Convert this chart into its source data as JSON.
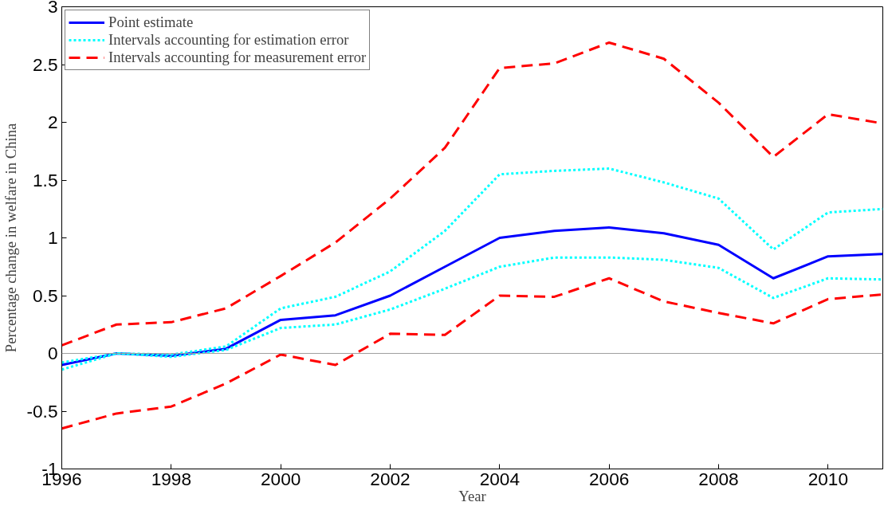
{
  "chart_data": {
    "type": "line",
    "xlabel": "Year",
    "ylabel": "Percentage change in welfare in China",
    "x": [
      1996,
      1997,
      1998,
      1999,
      2000,
      2001,
      2002,
      2003,
      2004,
      2005,
      2006,
      2007,
      2008,
      2009,
      2010,
      2011
    ],
    "series": [
      {
        "name": "Point estimate",
        "color": "#0000ff",
        "line_style": "solid",
        "values": [
          -0.1,
          0,
          -0.02,
          0.04,
          0.29,
          0.33,
          0.5,
          0.75,
          1.0,
          1.06,
          1.09,
          1.04,
          0.94,
          0.65,
          0.84,
          0.86
        ]
      },
      {
        "name": "Intervals accounting for estimation error",
        "color": "#00ffff",
        "line_style": "dotted",
        "values": [
          -0.08,
          0.0,
          -0.01,
          0.06,
          0.39,
          0.49,
          0.71,
          1.06,
          1.55,
          1.58,
          1.6,
          1.48,
          1.34,
          0.9,
          1.22,
          1.25
        ]
      },
      {
        "name": "Intervals accounting for measurement error",
        "color": "#ff0000",
        "line_style": "dashed",
        "values": [
          0.07,
          0.25,
          0.27,
          0.39,
          0.67,
          0.96,
          1.34,
          1.78,
          2.47,
          2.51,
          2.69,
          2.55,
          2.17,
          1.7,
          2.07,
          1.99
        ]
      },
      {
        "color": "#00ffff",
        "line_style": "dotted",
        "values": [
          -0.14,
          0,
          -0.03,
          0.03,
          0.22,
          0.25,
          0.38,
          0.56,
          0.75,
          0.83,
          0.83,
          0.81,
          0.74,
          0.48,
          0.65,
          0.64
        ]
      },
      {
        "color": "#ff0000",
        "line_style": "dashed",
        "values": [
          -0.65,
          -0.52,
          -0.46,
          -0.26,
          -0.01,
          -0.1,
          0.17,
          0.16,
          0.5,
          0.49,
          0.65,
          0.45,
          0.35,
          0.26,
          0.47,
          0.51
        ]
      }
    ],
    "xlim": [
      1996,
      2011
    ],
    "xticks": [
      1996,
      1998,
      2000,
      2002,
      2004,
      2006,
      2008,
      2010
    ],
    "ylim": [
      -1,
      3
    ],
    "yticks": [
      -1,
      -0.5,
      0,
      0.5,
      1,
      1.5,
      2,
      2.5,
      3
    ],
    "ref_lines": [
      {
        "axis": "y",
        "value": 0,
        "color": "#a0a0a0"
      }
    ],
    "grid": false,
    "legend": "top left",
    "marker": "none"
  }
}
